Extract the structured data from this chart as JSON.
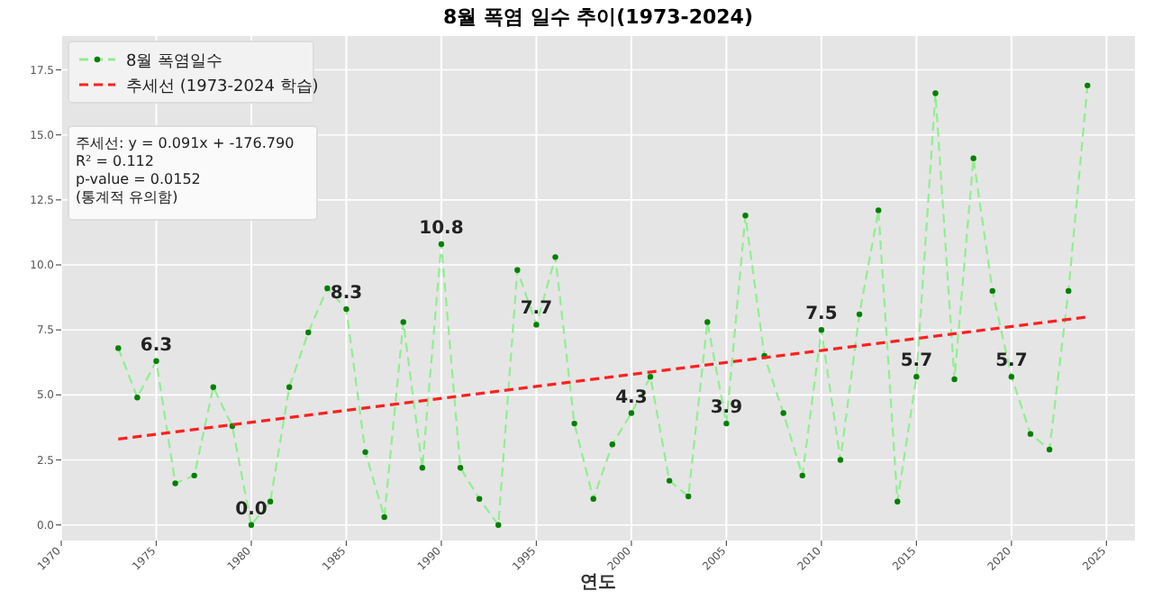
{
  "chart_data": {
    "type": "line",
    "title": "8월 폭염 일수 추이(1973-2024)",
    "xlabel": "연도",
    "xlim": [
      1970,
      2026.5
    ],
    "ylim": [
      -0.6,
      18.8
    ],
    "xticks": [
      1970,
      1975,
      1980,
      1985,
      1990,
      1995,
      2000,
      2005,
      2010,
      2015,
      2020,
      2025
    ],
    "yticks": [
      {
        "value": 0,
        "label": "0.0"
      },
      {
        "value": 2.5,
        "label": "2.5"
      },
      {
        "value": 5,
        "label": "5.0"
      },
      {
        "value": 7.5,
        "label": "7.5"
      },
      {
        "value": 10,
        "label": "10.0"
      },
      {
        "value": 12.5,
        "label": "12.5"
      },
      {
        "value": 15,
        "label": "15.0"
      },
      {
        "value": 17.5,
        "label": "17.5"
      }
    ],
    "grid": true,
    "legend": "top left",
    "annotations": [
      "주세선: y = 0.091x + -176.790",
      "R² = 0.112",
      "p-value = 0.0152",
      "(통계적 유의함)"
    ],
    "series": [
      {
        "name": "8월 폭염일수",
        "color": "#90ee90",
        "marker": "circle",
        "line_style": "dashed",
        "x": [
          1973,
          1974,
          1975,
          1976,
          1977,
          1978,
          1979,
          1980,
          1981,
          1982,
          1983,
          1984,
          1985,
          1986,
          1987,
          1988,
          1989,
          1990,
          1991,
          1992,
          1993,
          1994,
          1995,
          1996,
          1997,
          1998,
          1999,
          2000,
          2001,
          2002,
          2003,
          2004,
          2005,
          2006,
          2007,
          2008,
          2009,
          2010,
          2011,
          2012,
          2013,
          2014,
          2015,
          2016,
          2017,
          2018,
          2019,
          2020,
          2021,
          2022,
          2023,
          2024
        ],
        "values": [
          6.8,
          4.9,
          6.3,
          1.6,
          1.9,
          5.3,
          3.8,
          0.0,
          0.9,
          5.3,
          7.4,
          9.1,
          8.3,
          2.8,
          0.3,
          7.8,
          2.2,
          10.8,
          2.2,
          1.0,
          0.0,
          9.8,
          7.7,
          10.3,
          3.9,
          1.0,
          3.1,
          4.3,
          5.7,
          1.7,
          1.1,
          7.8,
          3.9,
          11.9,
          6.5,
          4.3,
          1.9,
          7.5,
          2.5,
          8.1,
          12.1,
          0.9,
          5.7,
          16.6,
          5.6,
          14.1,
          9.0,
          5.7,
          3.5,
          2.9,
          9.0,
          16.9
        ],
        "value_labels": [
          null,
          null,
          "6.3",
          null,
          null,
          null,
          null,
          "0.0",
          null,
          null,
          null,
          null,
          "8.3",
          null,
          null,
          null,
          null,
          "10.8",
          null,
          null,
          null,
          null,
          "7.7",
          null,
          null,
          null,
          null,
          "4.3",
          null,
          null,
          null,
          null,
          "3.9",
          null,
          null,
          null,
          null,
          "7.5",
          null,
          null,
          null,
          null,
          "5.7",
          null,
          null,
          null,
          null,
          "5.7",
          null,
          null,
          null,
          null
        ]
      },
      {
        "name": "추세선 (1973-2024 학습)",
        "color": "#ff2020",
        "marker": "none",
        "line_style": "dashed",
        "x": [
          1973,
          2024
        ],
        "values": [
          3.3,
          8.0
        ]
      }
    ]
  }
}
